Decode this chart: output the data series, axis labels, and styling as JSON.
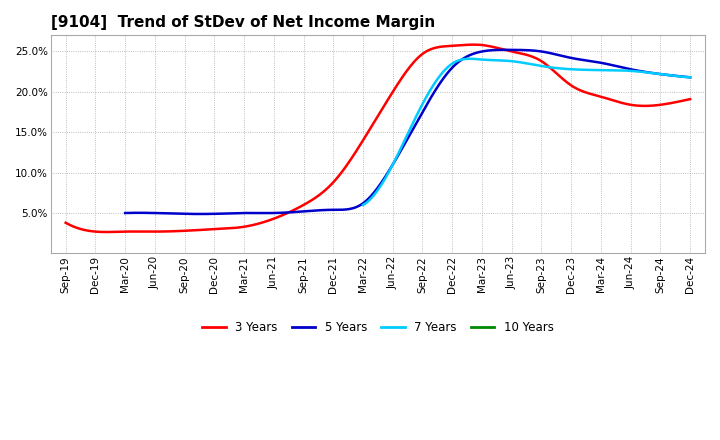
{
  "title": "[9104]  Trend of StDev of Net Income Margin",
  "background_color": "#ffffff",
  "plot_bg_color": "#ffffff",
  "grid_color": "#aaaaaa",
  "ylim": [
    0.0,
    0.27
  ],
  "yticks": [
    0.05,
    0.1,
    0.15,
    0.2,
    0.25
  ],
  "ytick_labels": [
    "5.0%",
    "10.0%",
    "15.0%",
    "20.0%",
    "25.0%"
  ],
  "x_labels": [
    "Sep-19",
    "Dec-19",
    "Mar-20",
    "Jun-20",
    "Sep-20",
    "Dec-20",
    "Mar-21",
    "Jun-21",
    "Sep-21",
    "Dec-21",
    "Mar-22",
    "Jun-22",
    "Sep-22",
    "Dec-22",
    "Mar-23",
    "Jun-23",
    "Sep-23",
    "Dec-23",
    "Mar-24",
    "Jun-24",
    "Sep-24",
    "Dec-24"
  ],
  "series": {
    "3 Years": {
      "color": "#ff0000",
      "values": [
        0.038,
        0.027,
        0.027,
        0.027,
        0.028,
        0.03,
        0.033,
        0.043,
        0.06,
        0.088,
        0.14,
        0.2,
        0.247,
        0.257,
        0.258,
        0.25,
        0.238,
        0.208,
        0.194,
        0.184,
        0.184,
        0.191
      ]
    },
    "5 Years": {
      "color": "#0000cc",
      "values": [
        null,
        null,
        0.05,
        0.05,
        0.049,
        0.049,
        0.05,
        0.05,
        0.052,
        0.054,
        0.062,
        0.11,
        0.175,
        0.23,
        0.25,
        0.252,
        0.25,
        0.242,
        0.236,
        0.228,
        0.222,
        0.218
      ]
    },
    "7 Years": {
      "color": "#00ccff",
      "values": [
        null,
        null,
        null,
        null,
        null,
        null,
        null,
        null,
        null,
        null,
        0.06,
        0.11,
        0.185,
        0.235,
        0.24,
        0.238,
        0.232,
        0.228,
        0.227,
        0.226,
        0.222,
        0.218
      ]
    },
    "10 Years": {
      "color": "#008800",
      "values": [
        null,
        null,
        null,
        null,
        null,
        null,
        null,
        null,
        null,
        null,
        null,
        null,
        null,
        null,
        null,
        null,
        null,
        null,
        null,
        null,
        null,
        null
      ]
    }
  },
  "legend_order": [
    "3 Years",
    "5 Years",
    "7 Years",
    "10 Years"
  ],
  "title_fontsize": 11,
  "tick_fontsize": 7.5,
  "legend_fontsize": 8.5
}
